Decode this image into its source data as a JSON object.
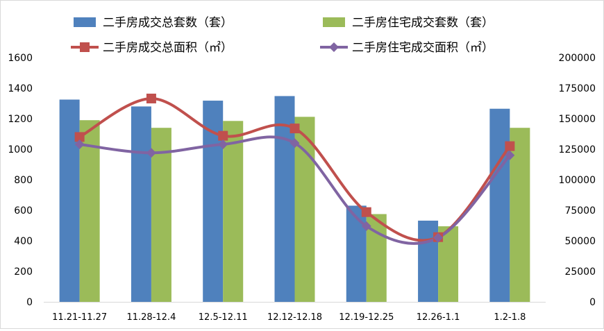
{
  "chart_data": {
    "type": "bar",
    "categories": [
      "11.21-11.27",
      "11.28-12.4",
      "12.5-12.11",
      "12.12-12.18",
      "12.19-12.25",
      "12.26-1.1",
      "1.2-1.8"
    ],
    "y_left": {
      "min": 0,
      "max": 1600,
      "step": 200,
      "ticks": [
        "0",
        "200",
        "400",
        "600",
        "800",
        "1000",
        "1200",
        "1400",
        "1600"
      ]
    },
    "y_right": {
      "min": 0,
      "max": 200000,
      "step": 25000,
      "ticks": [
        "0",
        "25000",
        "50000",
        "75000",
        "100000",
        "125000",
        "150000",
        "175000",
        "200000"
      ]
    },
    "grid": false,
    "legend": {
      "placement": "top"
    },
    "bar_series": [
      {
        "name": "二手房成交总套数（套）",
        "color": "#4F81BD",
        "axis": "left",
        "values": [
          1325,
          1280,
          1318,
          1348,
          630,
          532,
          1265
        ]
      },
      {
        "name": "二手房住宅成交套数（套）",
        "color": "#9BBB59",
        "axis": "left",
        "values": [
          1190,
          1140,
          1185,
          1212,
          575,
          495,
          1140
        ]
      }
    ],
    "line_series": [
      {
        "name": "二手房成交总面积（㎡）",
        "color": "#C0504D",
        "marker": "square",
        "axis": "right",
        "smooth": true,
        "values": [
          135000,
          166500,
          136000,
          142000,
          73500,
          53000,
          127500
        ]
      },
      {
        "name": "二手房住宅成交面积（㎡）",
        "color": "#8064A2",
        "marker": "diamond",
        "axis": "right",
        "smooth": true,
        "values": [
          129000,
          122000,
          129000,
          130000,
          62000,
          52500,
          120000
        ]
      }
    ]
  }
}
